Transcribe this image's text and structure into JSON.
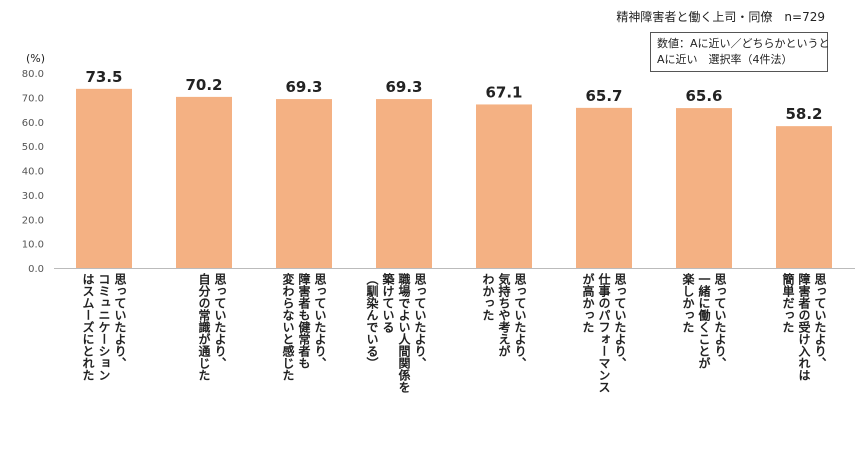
{
  "header": {
    "subtitle": "精神障害者と働く上司・同僚　n=729",
    "note_line1": "数値：Aに近い／どちらかというと",
    "note_line2": "Aに近い　選択率（4件法）",
    "unit": "(%)"
  },
  "chart_data": {
    "type": "bar",
    "title": "",
    "ylim": [
      0,
      80
    ],
    "yticks": [
      "80.0",
      "70.0",
      "60.0",
      "50.0",
      "40.0",
      "30.0",
      "20.0",
      "10.0",
      "0.0"
    ],
    "bar_color": "#f4b183",
    "categories": [
      [
        "思っていたより、",
        "コミュニケーション",
        "はスムーズにとれた"
      ],
      [
        "思っていたより、",
        "自分の常識が通じた"
      ],
      [
        "思っていたより、",
        "障害者も健常者も",
        "変わらないと感じた"
      ],
      [
        "思っていたより、",
        "職場でよい人間関係を",
        "築けている",
        "（馴染んでいる）"
      ],
      [
        "思っていたより、",
        "気持ちや考えが",
        "わかった"
      ],
      [
        "思っていたより、",
        "仕事のパフォーマンス",
        "が高かった"
      ],
      [
        "思っていたより、",
        "一緒に働くことが",
        "楽しかった"
      ],
      [
        "思っていたより、",
        "障害者の受け入れは",
        "簡単だった"
      ]
    ],
    "values": [
      73.5,
      70.2,
      69.3,
      69.3,
      67.1,
      65.7,
      65.6,
      58.2
    ],
    "value_labels": [
      "73.5",
      "70.2",
      "69.3",
      "69.3",
      "67.1",
      "65.7",
      "65.6",
      "58.2"
    ]
  }
}
